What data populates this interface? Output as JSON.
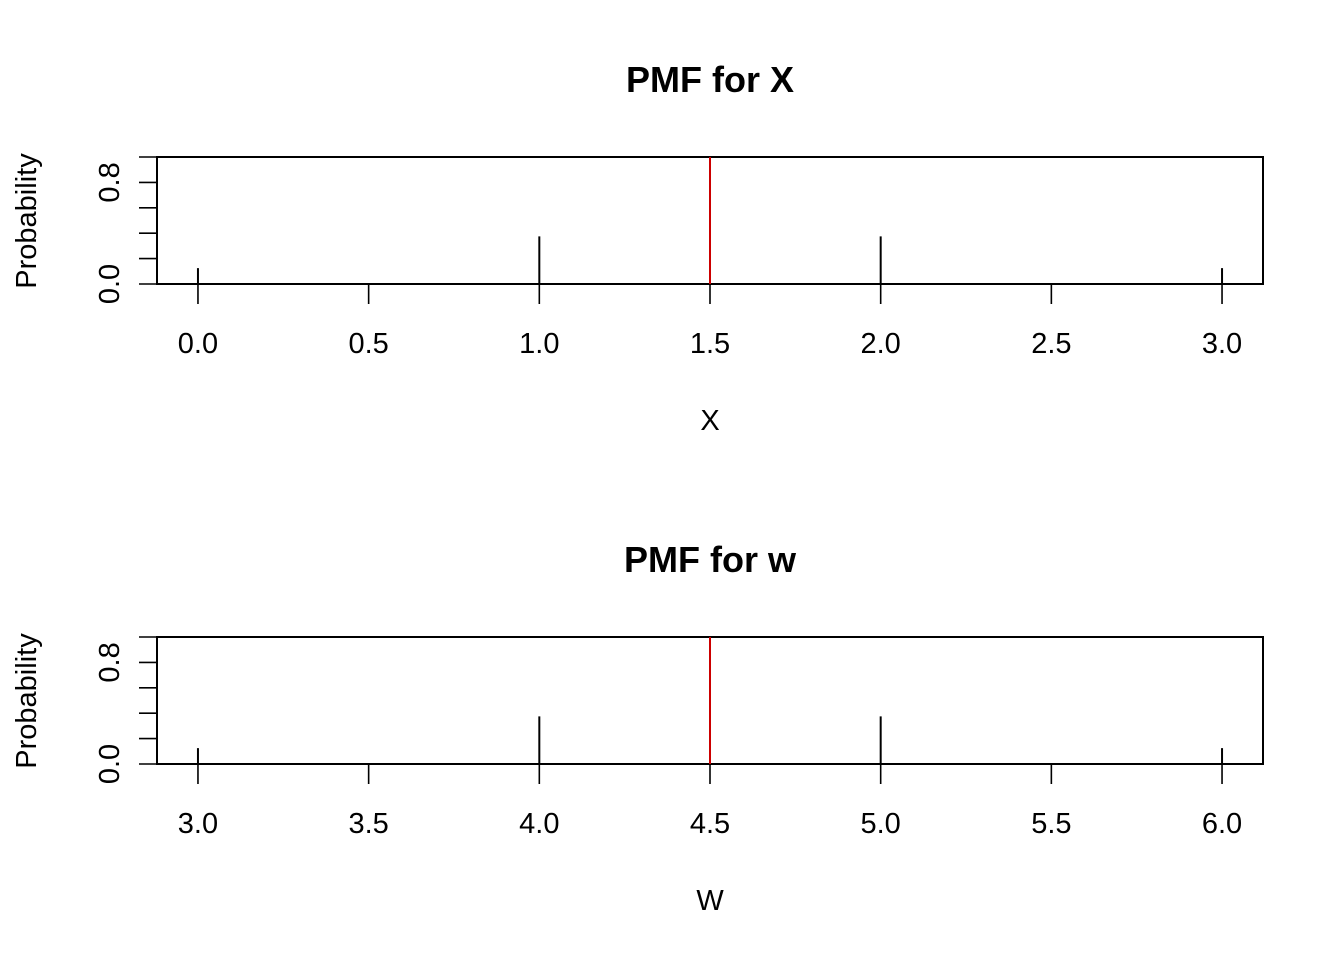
{
  "colors": {
    "spike": "#000000",
    "mean_line": "#CC0000"
  },
  "chart_data": [
    {
      "type": "bar",
      "title": "PMF for X",
      "xlabel": "X",
      "ylabel": "Probability",
      "x": [
        0,
        1,
        2,
        3
      ],
      "values": [
        0.125,
        0.375,
        0.375,
        0.125
      ],
      "mean_line_x": 1.5,
      "xlim": [
        -0.12,
        3.12
      ],
      "ylim": [
        0,
        1
      ],
      "xticks": [
        0.0,
        0.5,
        1.0,
        1.5,
        2.0,
        2.5,
        3.0
      ],
      "xtick_labels": [
        "0.0",
        "0.5",
        "1.0",
        "1.5",
        "2.0",
        "2.5",
        "3.0"
      ],
      "yticks": [
        0.0,
        0.2,
        0.4,
        0.6,
        0.8,
        1.0
      ],
      "ytick_labels": [
        "0.0",
        "0.8"
      ],
      "ytick_label_values": [
        0.0,
        0.8
      ],
      "grid": false
    },
    {
      "type": "bar",
      "title": "PMF for w",
      "xlabel": "W",
      "ylabel": "Probability",
      "x": [
        3,
        4,
        5,
        6
      ],
      "values": [
        0.125,
        0.375,
        0.375,
        0.125
      ],
      "mean_line_x": 4.5,
      "xlim": [
        2.88,
        6.12
      ],
      "ylim": [
        0,
        1
      ],
      "xticks": [
        3.0,
        3.5,
        4.0,
        4.5,
        5.0,
        5.5,
        6.0
      ],
      "xtick_labels": [
        "3.0",
        "3.5",
        "4.0",
        "4.5",
        "5.0",
        "5.5",
        "6.0"
      ],
      "yticks": [
        0.0,
        0.2,
        0.4,
        0.6,
        0.8,
        1.0
      ],
      "ytick_labels": [
        "0.0",
        "0.8"
      ],
      "ytick_label_values": [
        0.0,
        0.8
      ],
      "grid": false
    }
  ]
}
